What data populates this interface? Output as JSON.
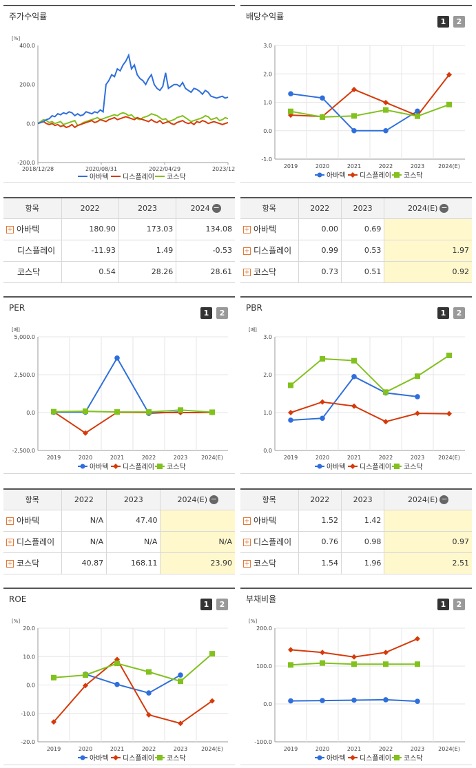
{
  "legend": [
    "아바텍",
    "디스플레이",
    "코스닥"
  ],
  "colors": {
    "s0": "#2f6fdc",
    "s1": "#d63a0a",
    "s2": "#82c11e"
  },
  "panels": [
    {
      "title": "주가수익률",
      "unit": "[%]",
      "pager": [],
      "chart_data": {
        "type": "line",
        "ylim": [
          -200,
          400
        ],
        "yticks": [
          "400.0",
          "200.0",
          "0.0",
          "-200.0"
        ],
        "xticks": [
          "2018/12/28",
          "2020/08/31",
          "2022/04/29",
          "2023/12/28"
        ],
        "x": [
          0,
          4,
          8,
          12,
          16,
          20,
          24,
          28,
          32,
          36,
          40,
          44,
          48,
          52,
          56,
          60,
          64,
          68,
          72,
          76,
          80,
          84,
          88,
          92,
          96,
          100,
          104,
          108,
          112,
          116,
          120,
          124,
          128,
          132,
          136,
          140,
          144,
          148,
          152,
          156,
          160,
          164,
          168,
          172,
          176,
          180,
          184,
          188,
          192,
          196,
          200,
          204,
          208,
          212,
          216,
          220,
          224,
          228,
          232,
          236,
          240,
          244,
          248,
          252,
          256,
          260,
          264,
          268
        ],
        "series": [
          {
            "name": "아바텍",
            "values": [
              0,
              5,
              10,
              20,
              25,
              40,
              35,
              50,
              45,
              55,
              50,
              60,
              55,
              40,
              50,
              40,
              45,
              60,
              55,
              50,
              60,
              55,
              70,
              60,
              200,
              220,
              250,
              240,
              280,
              270,
              300,
              320,
              350,
              280,
              300,
              250,
              230,
              220,
              200,
              230,
              250,
              200,
              180,
              170,
              190,
              260,
              180,
              190,
              200,
              200,
              190,
              210,
              180,
              170,
              160,
              180,
              175,
              165,
              150,
              170,
              160,
              140,
              135,
              130,
              135,
              140,
              130,
              135
            ]
          },
          {
            "name": "디스플레이",
            "values": [
              0,
              5,
              10,
              0,
              -5,
              0,
              -10,
              -5,
              -15,
              -10,
              -20,
              -15,
              -5,
              -20,
              -10,
              -5,
              0,
              5,
              10,
              15,
              5,
              10,
              20,
              15,
              10,
              20,
              25,
              30,
              20,
              25,
              30,
              35,
              30,
              25,
              20,
              30,
              25,
              20,
              15,
              10,
              20,
              10,
              5,
              15,
              0,
              5,
              10,
              0,
              -5,
              5,
              10,
              15,
              5,
              0,
              5,
              -5,
              10,
              5,
              15,
              10,
              0,
              5,
              10,
              5,
              0,
              -5,
              0,
              5
            ]
          },
          {
            "name": "코스닥",
            "values": [
              0,
              10,
              20,
              15,
              5,
              10,
              0,
              5,
              10,
              -5,
              0,
              5,
              10,
              15,
              -10,
              -5,
              5,
              10,
              15,
              20,
              25,
              30,
              20,
              25,
              30,
              35,
              40,
              45,
              40,
              50,
              55,
              50,
              40,
              45,
              30,
              25,
              20,
              30,
              35,
              40,
              50,
              45,
              40,
              30,
              20,
              25,
              10,
              15,
              20,
              30,
              35,
              40,
              30,
              20,
              10,
              15,
              20,
              25,
              30,
              40,
              35,
              20,
              25,
              30,
              15,
              20,
              30,
              25
            ]
          }
        ]
      }
    },
    {
      "title": "배당수익률",
      "unit": "",
      "pager": [
        "1",
        "2"
      ],
      "chart_data": {
        "type": "line",
        "ylim": [
          -1,
          3
        ],
        "yticks": [
          "3.0",
          "2.0",
          "1.0",
          "0.0",
          "-1.0"
        ],
        "xticks": [
          "2019",
          "2020",
          "2021",
          "2022",
          "2023",
          "2024(E)"
        ],
        "series": [
          {
            "name": "아바텍",
            "values": [
              1.3,
              1.15,
              0.0,
              0.0,
              0.69,
              null
            ]
          },
          {
            "name": "디스플레이",
            "values": [
              0.55,
              0.5,
              1.45,
              0.99,
              0.53,
              1.97
            ]
          },
          {
            "name": "코스닥",
            "values": [
              0.68,
              0.48,
              0.52,
              0.73,
              0.51,
              0.92
            ]
          }
        ]
      }
    },
    {
      "title": "PER",
      "unit": "[배]",
      "pager": [
        "1",
        "2"
      ],
      "chart_data": {
        "type": "line",
        "ylim": [
          -2500,
          5000
        ],
        "yticks": [
          "5,000.0",
          "2,500.0",
          "0.0",
          "-2,500.0"
        ],
        "xticks": [
          "2019",
          "2020",
          "2021",
          "2022",
          "2023",
          "2024(E)"
        ],
        "series": [
          {
            "name": "아바텍",
            "values": [
              20,
              30,
              3600,
              -50,
              47.4,
              null
            ]
          },
          {
            "name": "디스플레이",
            "values": [
              50,
              -1350,
              20,
              0,
              0,
              0
            ]
          },
          {
            "name": "코스닥",
            "values": [
              60,
              90,
              40,
              40.87,
              168.11,
              23.9
            ]
          }
        ]
      }
    },
    {
      "title": "PBR",
      "unit": "[배]",
      "pager": [
        "1",
        "2"
      ],
      "chart_data": {
        "type": "line",
        "ylim": [
          0,
          3
        ],
        "yticks": [
          "3.0",
          "2.0",
          "1.0",
          "0.0"
        ],
        "xticks": [
          "2019",
          "2020",
          "2021",
          "2022",
          "2023",
          "2024(E)"
        ],
        "series": [
          {
            "name": "아바텍",
            "values": [
              0.8,
              0.85,
              1.95,
              1.52,
              1.42,
              null
            ]
          },
          {
            "name": "디스플레이",
            "values": [
              1.0,
              1.28,
              1.17,
              0.76,
              0.98,
              0.97
            ]
          },
          {
            "name": "코스닥",
            "values": [
              1.72,
              2.42,
              2.37,
              1.54,
              1.96,
              2.51
            ]
          }
        ]
      }
    },
    {
      "title": "ROE",
      "unit": "[%]",
      "pager": [
        "1",
        "2"
      ],
      "chart_data": {
        "type": "line",
        "ylim": [
          -20,
          20
        ],
        "yticks": [
          "20.0",
          "10.0",
          "0.0",
          "-10.0",
          "-20.0"
        ],
        "xticks": [
          "2019",
          "2020",
          "2021",
          "2022",
          "2023",
          "2024(E)"
        ],
        "series": [
          {
            "name": "아바텍",
            "values": [
              null,
              3.8,
              0.2,
              -2.8,
              3.5,
              null
            ]
          },
          {
            "name": "디스플레이",
            "values": [
              -13,
              -0.2,
              9.0,
              -10.5,
              -13.5,
              -5.6
            ]
          },
          {
            "name": "코스닥",
            "values": [
              2.6,
              3.5,
              7.6,
              4.6,
              1.3,
              11.0
            ]
          }
        ]
      }
    },
    {
      "title": "부채비율",
      "unit": "[%]",
      "pager": [
        "1",
        "2"
      ],
      "chart_data": {
        "type": "line",
        "ylim": [
          -100,
          200
        ],
        "yticks": [
          "200.0",
          "100.0",
          "0.0",
          "-100.0"
        ],
        "xticks": [
          "2019",
          "2020",
          "2021",
          "2022",
          "2023",
          "2024(E)"
        ],
        "series": [
          {
            "name": "아바텍",
            "values": [
              8,
              9,
              10,
              11,
              7,
              null
            ]
          },
          {
            "name": "디스플레이",
            "values": [
              143,
              136,
              124,
              136,
              172,
              null
            ]
          },
          {
            "name": "코스닥",
            "values": [
              103,
              108,
              105,
              105,
              105,
              null
            ]
          }
        ]
      }
    }
  ],
  "tables": [
    {
      "cols": [
        "항목",
        "2022",
        "2023",
        "2024"
      ],
      "rows": [
        {
          "label": "아바텍",
          "plus": true,
          "vals": [
            "180.90",
            "173.03",
            "134.08"
          ]
        },
        {
          "label": "디스플레이",
          "plus": false,
          "vals": [
            "-11.93",
            "1.49",
            "-0.53"
          ]
        },
        {
          "label": "코스닥",
          "plus": false,
          "vals": [
            "0.54",
            "28.26",
            "28.61"
          ]
        }
      ],
      "highlight_last": false
    },
    {
      "cols": [
        "항목",
        "2022",
        "2023",
        "2024(E)"
      ],
      "rows": [
        {
          "label": "아바텍",
          "plus": true,
          "vals": [
            "0.00",
            "0.69",
            ""
          ]
        },
        {
          "label": "디스플레이",
          "plus": true,
          "vals": [
            "0.99",
            "0.53",
            "1.97"
          ]
        },
        {
          "label": "코스닥",
          "plus": true,
          "vals": [
            "0.73",
            "0.51",
            "0.92"
          ]
        }
      ],
      "highlight_last": true
    },
    {
      "cols": [
        "항목",
        "2022",
        "2023",
        "2024(E)"
      ],
      "rows": [
        {
          "label": "아바텍",
          "plus": true,
          "vals": [
            "N/A",
            "47.40",
            ""
          ]
        },
        {
          "label": "디스플레이",
          "plus": true,
          "vals": [
            "N/A",
            "N/A",
            "N/A"
          ]
        },
        {
          "label": "코스닥",
          "plus": true,
          "vals": [
            "40.87",
            "168.11",
            "23.90"
          ]
        }
      ],
      "highlight_last": true
    },
    {
      "cols": [
        "항목",
        "2022",
        "2023",
        "2024(E)"
      ],
      "rows": [
        {
          "label": "아바텍",
          "plus": true,
          "vals": [
            "1.52",
            "1.42",
            ""
          ]
        },
        {
          "label": "디스플레이",
          "plus": true,
          "vals": [
            "0.76",
            "0.98",
            "0.97"
          ]
        },
        {
          "label": "코스닥",
          "plus": true,
          "vals": [
            "1.54",
            "1.96",
            "2.51"
          ]
        }
      ],
      "highlight_last": true
    }
  ]
}
